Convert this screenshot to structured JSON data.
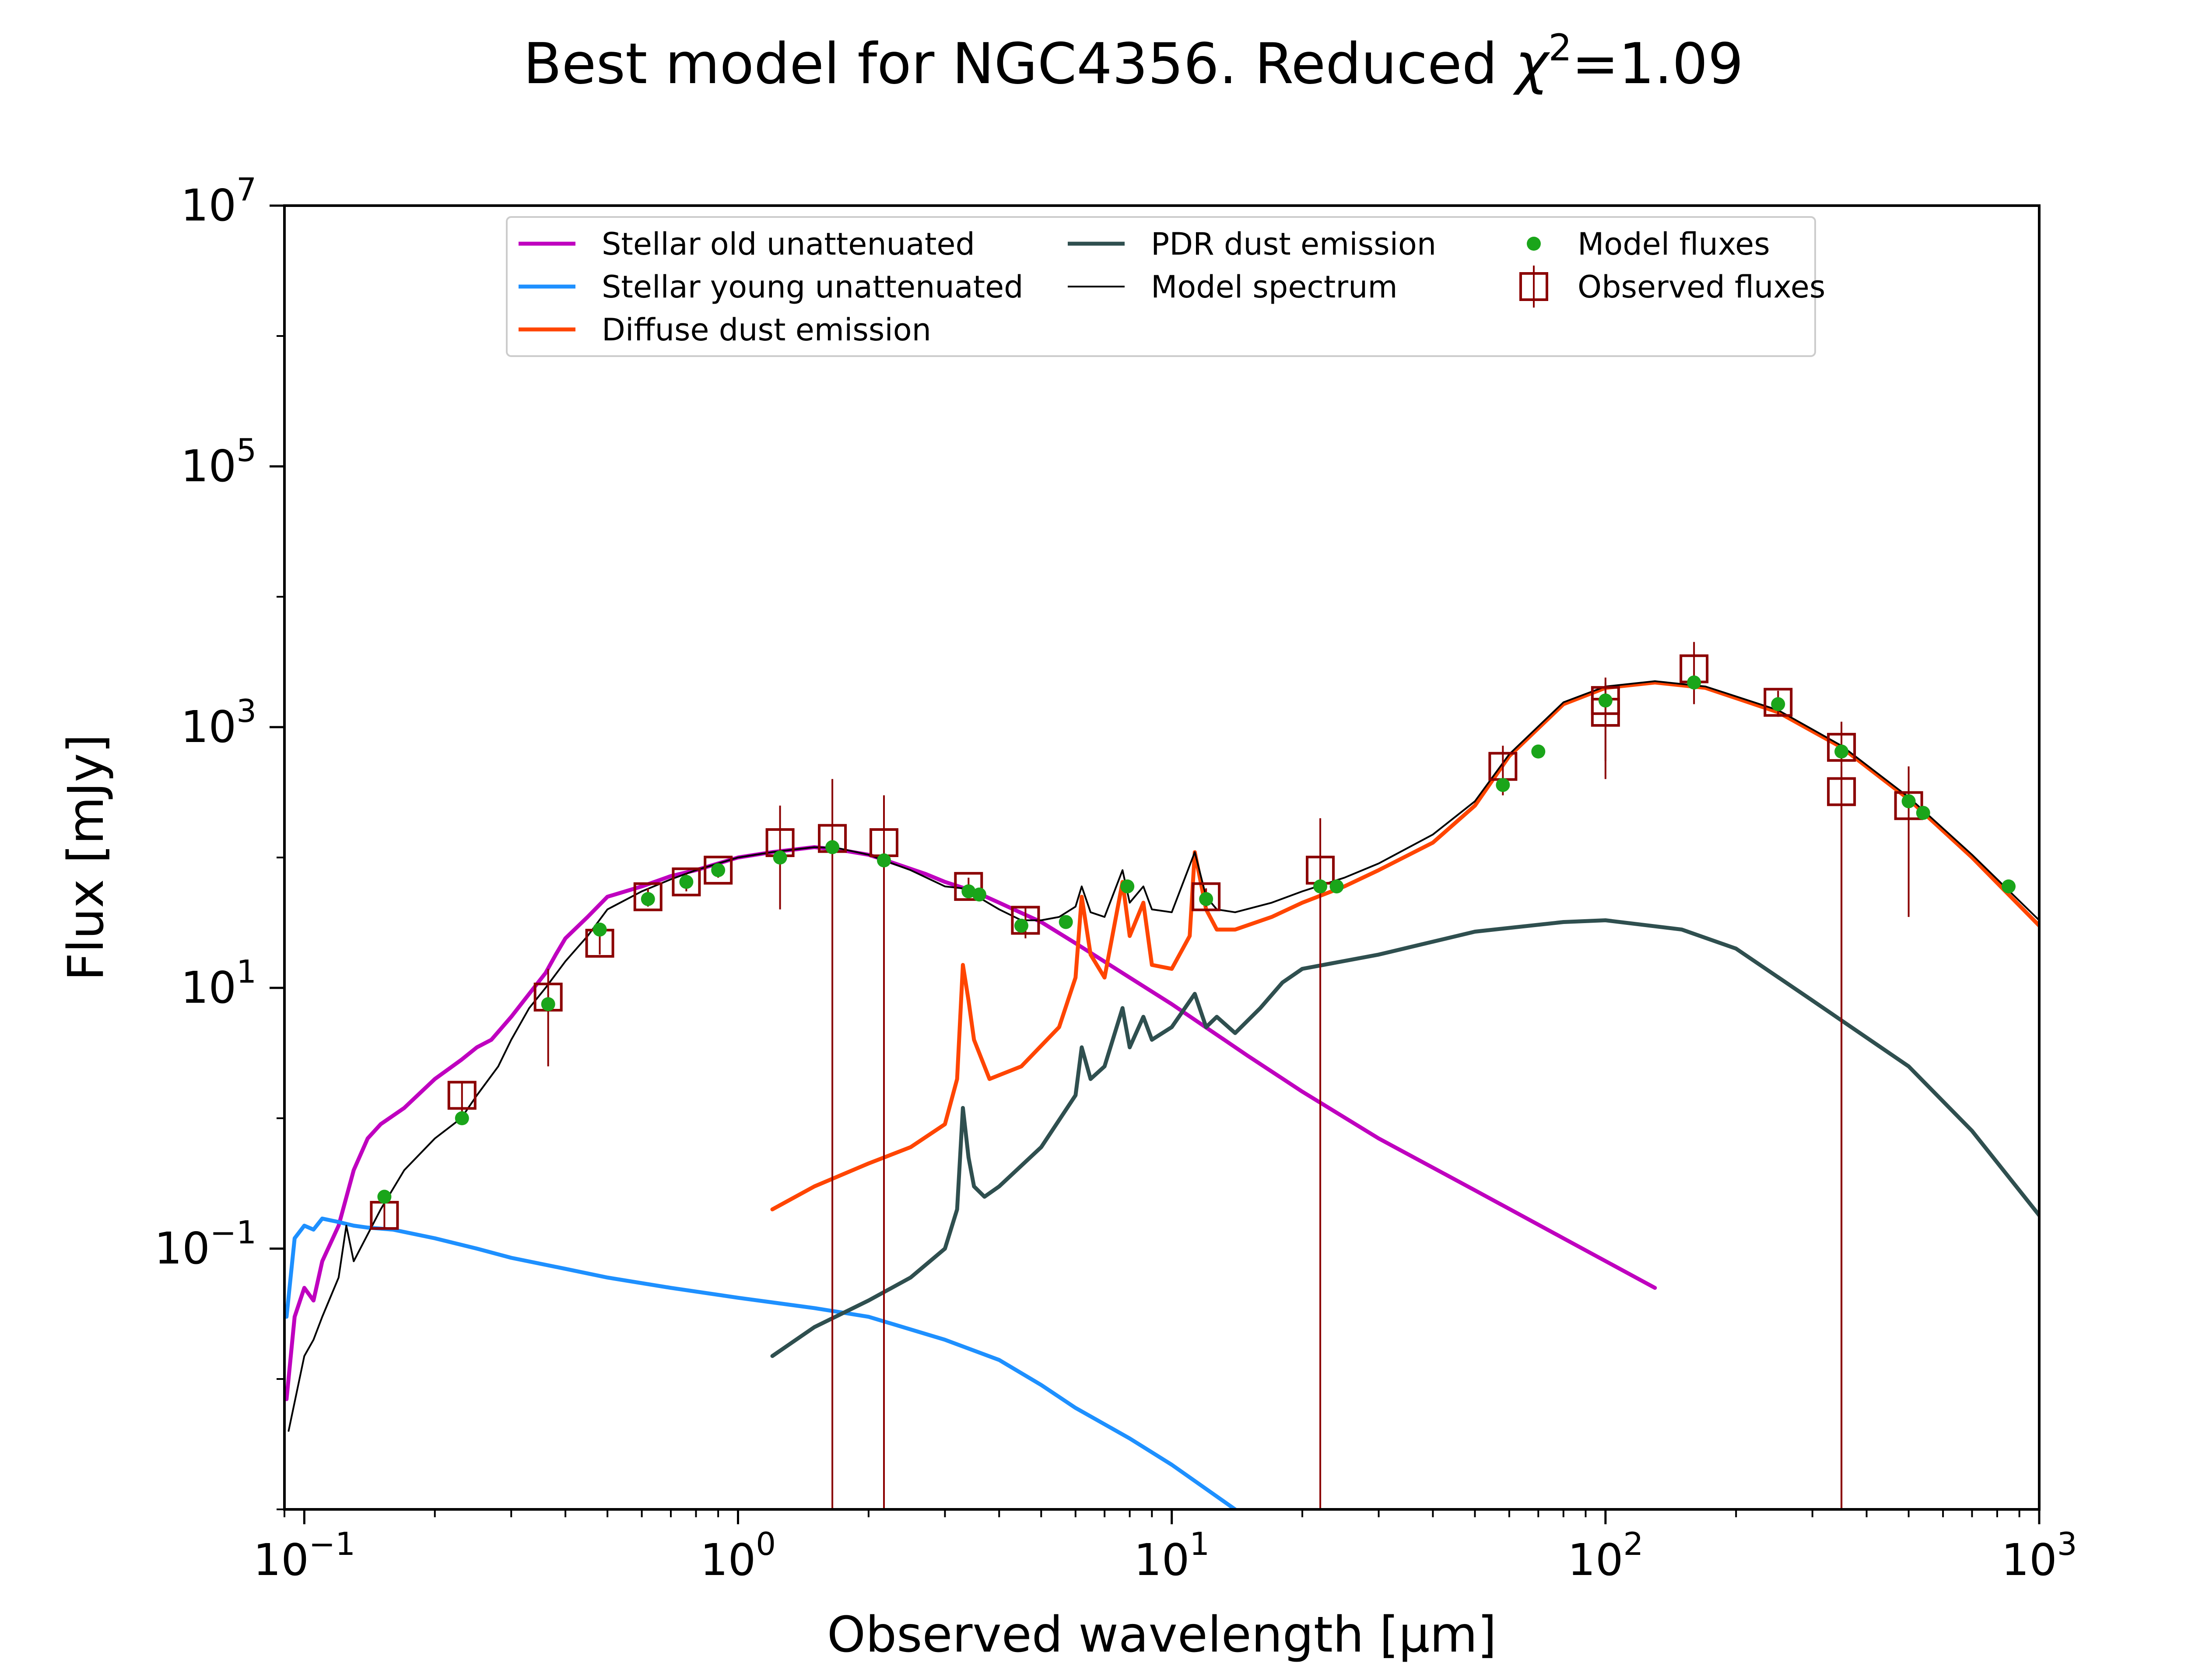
{
  "chart_data": {
    "type": "line",
    "title": "Best model for NGC4356. Reduced χ²=1.09",
    "title_parts": {
      "main": "Best model for NGC4356. Reduced ",
      "symbol": "χ",
      "exponent": "2",
      "value": "=1.09"
    },
    "xlabel": "Observed wavelength [μm]",
    "ylabel": "Flux [mJy]",
    "x_scale": "log",
    "y_scale": "log",
    "xlim": [
      0.09,
      1000
    ],
    "ylim": [
      0.001,
      10000000
    ],
    "x_ticks": [
      {
        "value": 0.1,
        "base": "10",
        "exp": "−1"
      },
      {
        "value": 1,
        "base": "10",
        "exp": "0"
      },
      {
        "value": 10,
        "base": "10",
        "exp": "1"
      },
      {
        "value": 100,
        "base": "10",
        "exp": "2"
      },
      {
        "value": 1000,
        "base": "10",
        "exp": "3"
      }
    ],
    "y_ticks": [
      {
        "value": 0.1,
        "base": "10",
        "exp": "−1"
      },
      {
        "value": 10,
        "base": "10",
        "exp": "1"
      },
      {
        "value": 1000,
        "base": "10",
        "exp": "3"
      },
      {
        "value": 100000,
        "base": "10",
        "exp": "5"
      },
      {
        "value": 10000000,
        "base": "10",
        "exp": "7"
      }
    ],
    "grid": false,
    "legend_position": "top",
    "series": [
      {
        "name": "Stellar old unattenuated",
        "color": "#bf00bf",
        "x": [
          0.091,
          0.095,
          0.1,
          0.105,
          0.11,
          0.12,
          0.13,
          0.14,
          0.15,
          0.17,
          0.2,
          0.23,
          0.25,
          0.27,
          0.3,
          0.33,
          0.36,
          0.38,
          0.4,
          0.45,
          0.5,
          0.6,
          0.7,
          0.8,
          1.0,
          1.2,
          1.5,
          1.7,
          2.0,
          2.3,
          2.7,
          3.0,
          3.5,
          4.0,
          5.0,
          6.0,
          8.0,
          10,
          15,
          20,
          30,
          50,
          80,
          130
        ],
        "y": [
          0.007,
          0.03,
          0.05,
          0.04,
          0.08,
          0.15,
          0.4,
          0.7,
          0.9,
          1.2,
          2.0,
          2.8,
          3.5,
          4.0,
          6.0,
          9.0,
          13,
          18,
          24,
          35,
          50,
          60,
          72,
          80,
          100,
          110,
          120,
          115,
          105,
          90,
          75,
          65,
          55,
          45,
          32,
          22,
          12,
          7.5,
          3.0,
          1.6,
          0.7,
          0.28,
          0.12,
          0.05
        ]
      },
      {
        "name": "Stellar young unattenuated",
        "color": "#1e90ff",
        "x": [
          0.091,
          0.095,
          0.1,
          0.105,
          0.11,
          0.12,
          0.13,
          0.14,
          0.16,
          0.2,
          0.25,
          0.3,
          0.4,
          0.5,
          0.7,
          1.0,
          1.5,
          2.0,
          2.5,
          3.0,
          4.0,
          5.0,
          6.0,
          8.0,
          10,
          14
        ],
        "y": [
          0.03,
          0.12,
          0.15,
          0.14,
          0.17,
          0.16,
          0.15,
          0.145,
          0.14,
          0.12,
          0.1,
          0.085,
          0.07,
          0.06,
          0.05,
          0.042,
          0.035,
          0.03,
          0.024,
          0.02,
          0.014,
          0.009,
          0.006,
          0.0035,
          0.0022,
          0.001
        ]
      },
      {
        "name": "Diffuse dust emission",
        "color": "#ff4500",
        "x": [
          1.2,
          1.5,
          2.0,
          2.5,
          3.0,
          3.2,
          3.3,
          3.4,
          3.5,
          3.8,
          4.5,
          5.5,
          6.0,
          6.2,
          6.5,
          7.0,
          7.7,
          8.0,
          8.6,
          9.0,
          10,
          11.0,
          11.3,
          12.0,
          12.7,
          14,
          17,
          20,
          25,
          30,
          40,
          50,
          60,
          80,
          100,
          130,
          170,
          250,
          350,
          500,
          700,
          1000
        ],
        "y": [
          0.2,
          0.3,
          0.45,
          0.6,
          0.9,
          2.0,
          15,
          8,
          4.0,
          2.0,
          2.5,
          5.0,
          12,
          50,
          18,
          12,
          65,
          25,
          45,
          15,
          14,
          25,
          110,
          40,
          28,
          28,
          35,
          45,
          60,
          80,
          130,
          250,
          600,
          1500,
          2000,
          2200,
          2000,
          1300,
          700,
          280,
          100,
          30
        ]
      },
      {
        "name": "PDR dust emission",
        "color": "#2f4f4f",
        "x": [
          1.2,
          1.5,
          2.0,
          2.5,
          3.0,
          3.2,
          3.3,
          3.4,
          3.5,
          3.7,
          4.0,
          5.0,
          6.0,
          6.2,
          6.5,
          7.0,
          7.7,
          8.0,
          8.6,
          9.0,
          10,
          11.3,
          12.0,
          12.7,
          14,
          16,
          18,
          20,
          30,
          50,
          80,
          100,
          150,
          200,
          300,
          500,
          700,
          1000
        ],
        "y": [
          0.015,
          0.025,
          0.04,
          0.06,
          0.1,
          0.2,
          1.2,
          0.5,
          0.3,
          0.25,
          0.3,
          0.6,
          1.5,
          3.5,
          2.0,
          2.5,
          7.0,
          3.5,
          6.0,
          4.0,
          5.0,
          9.0,
          5.0,
          6.0,
          4.5,
          7.0,
          11,
          14,
          18,
          27,
          32,
          33,
          28,
          20,
          8,
          2.5,
          0.8,
          0.18
        ]
      },
      {
        "name": "Model spectrum",
        "color": "#000000",
        "x": [
          0.092,
          0.1,
          0.105,
          0.11,
          0.12,
          0.125,
          0.13,
          0.15,
          0.17,
          0.2,
          0.23,
          0.25,
          0.28,
          0.3,
          0.33,
          0.36,
          0.4,
          0.45,
          0.5,
          0.6,
          0.7,
          0.8,
          1.0,
          1.2,
          1.5,
          1.7,
          2.0,
          2.5,
          3.0,
          3.3,
          3.5,
          4.0,
          4.5,
          5.0,
          5.5,
          6.0,
          6.2,
          6.5,
          7.0,
          7.7,
          8.0,
          8.6,
          9.0,
          10,
          11.3,
          12.0,
          12.7,
          14,
          17,
          20,
          25,
          30,
          40,
          50,
          60,
          80,
          100,
          130,
          170,
          250,
          350,
          500,
          700,
          1000
        ],
        "y": [
          0.004,
          0.015,
          0.02,
          0.03,
          0.06,
          0.15,
          0.08,
          0.2,
          0.4,
          0.7,
          1.0,
          1.5,
          2.5,
          4.0,
          7.0,
          10,
          16,
          25,
          40,
          55,
          68,
          80,
          100,
          110,
          120,
          118,
          105,
          80,
          60,
          58,
          52,
          40,
          33,
          33,
          35,
          42,
          60,
          38,
          35,
          80,
          45,
          60,
          40,
          38,
          110,
          50,
          40,
          38,
          45,
          55,
          70,
          90,
          150,
          270,
          620,
          1550,
          2050,
          2250,
          2050,
          1350,
          720,
          290,
          105,
          33
        ]
      },
      {
        "name": "Model fluxes",
        "color": "#1aa51a",
        "x": [
          0.153,
          0.231,
          0.365,
          0.48,
          0.62,
          0.76,
          0.9,
          1.25,
          1.65,
          2.17,
          3.4,
          3.6,
          4.5,
          5.7,
          7.9,
          12.0,
          22,
          24,
          58,
          70,
          100,
          160,
          250,
          350,
          500,
          540,
          850
        ],
        "y": [
          0.25,
          1.0,
          7.5,
          28,
          48,
          65,
          80,
          100,
          120,
          95,
          55,
          52,
          30,
          32,
          60,
          48,
          60,
          60,
          360,
          650,
          1600,
          2200,
          1500,
          650,
          270,
          220,
          60
        ]
      },
      {
        "name": "Observed fluxes",
        "color": "#8b0000",
        "x": [
          0.153,
          0.231,
          0.365,
          0.48,
          0.62,
          0.76,
          0.9,
          1.25,
          1.65,
          2.17,
          3.4,
          4.6,
          12.0,
          22,
          58,
          100,
          100,
          160,
          250,
          350,
          350,
          500
        ],
        "y": [
          0.18,
          1.5,
          8.5,
          22,
          50,
          65,
          80,
          130,
          140,
          130,
          60,
          33,
          50,
          80,
          500,
          1300,
          1600,
          2800,
          1550,
          700,
          320,
          250
        ],
        "err_lo": [
          0.14,
          1.1,
          2.5,
          18,
          42,
          55,
          70,
          40,
          0.001,
          0.001,
          52,
          24,
          42,
          0.001,
          300,
          550,
          400,
          1500,
          1200,
          0.001,
          0.001,
          35
        ],
        "err_hi": [
          0.22,
          1.9,
          14,
          26,
          58,
          75,
          90,
          250,
          400,
          300,
          70,
          42,
          58,
          200,
          720,
          2400,
          2200,
          4500,
          1900,
          1100,
          500,
          500
        ]
      }
    ]
  }
}
